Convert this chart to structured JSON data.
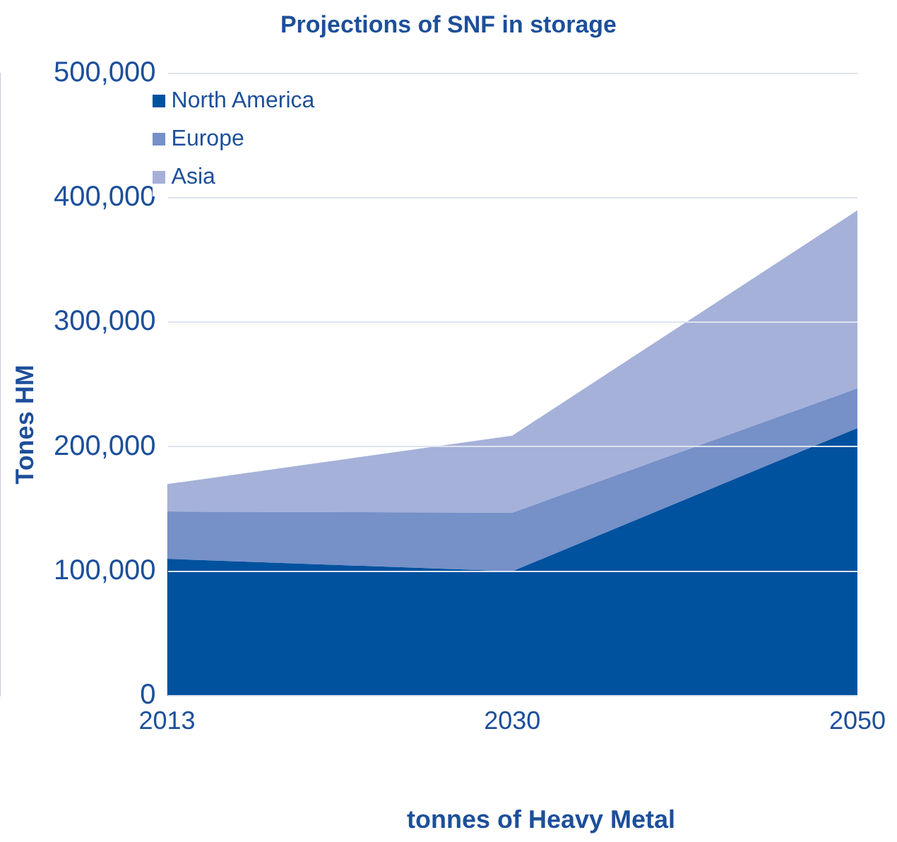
{
  "chart_data": {
    "type": "area",
    "title": "Projections of SNF in storage",
    "xlabel": "tonnes of Heavy Metal",
    "ylabel": "Tones HM",
    "categories": [
      "2013",
      "2030",
      "2050"
    ],
    "stacked": true,
    "series": [
      {
        "name": "North America",
        "color": "#00519e",
        "values": [
          110000,
          100000,
          215000
        ]
      },
      {
        "name": "Europe",
        "color": "#7690c8",
        "values": [
          38000,
          47000,
          32000
        ]
      },
      {
        "name": "Asia",
        "color": "#a5b1d9",
        "values": [
          22000,
          62000,
          143000
        ]
      }
    ],
    "ylim": [
      0,
      500000
    ],
    "yticks": [
      0,
      {
        "value": 100000,
        "label": "100,000"
      },
      {
        "value": 200000,
        "label": "200,000"
      },
      {
        "value": 300000,
        "label": "300,000"
      },
      {
        "value": 400000,
        "label": "400,000"
      },
      {
        "value": 500000,
        "label": "500,000"
      }
    ],
    "grid": "y",
    "legend": "top left"
  }
}
